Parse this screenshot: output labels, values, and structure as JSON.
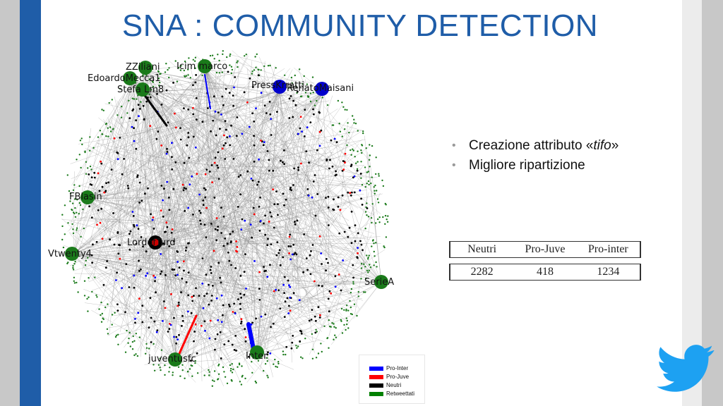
{
  "title": "SNA : COMMUNITY DETECTION",
  "bullets": [
    {
      "text_before": "Creazione attributo «",
      "italic": "tifo",
      "text_after": "»"
    },
    {
      "text_before": "Migliore ripartizione",
      "italic": "",
      "text_after": ""
    }
  ],
  "table": {
    "headers": [
      "Neutri",
      "Pro-Juve",
      "Pro-inter"
    ],
    "values": [
      "2282",
      "418",
      "1234"
    ]
  },
  "graph": {
    "labels": [
      {
        "name": "zziliani-label",
        "text": "ZZiliani"
      },
      {
        "name": "edoardomecca1-label",
        "text": "EdoardoMecca1"
      },
      {
        "name": "stefa-label",
        "text": "Stefa Lm8"
      },
      {
        "name": "icim-marco-label",
        "text": "Icim  marco"
      },
      {
        "name": "presskrrati-label",
        "text": "PressKrratti"
      },
      {
        "name": "renatomaisani-label",
        "text": "RenatoMaisani"
      },
      {
        "name": "fblasin-label",
        "text": "FBlasin"
      },
      {
        "name": "lordofturd-label",
        "text": "LordofTurd"
      },
      {
        "name": "vtwenty4-label",
        "text": "Vtwenty4"
      },
      {
        "name": "seriea-label",
        "text": "SerieA"
      },
      {
        "name": "juventusfc-label",
        "text": "juventusfc"
      },
      {
        "name": "inter-label",
        "text": "Inter"
      }
    ]
  },
  "legend": {
    "items": [
      {
        "label": "Pro-Inter",
        "color": "#0000ff"
      },
      {
        "label": "Pro-Juve",
        "color": "#ff0000"
      },
      {
        "label": "Neutri",
        "color": "#000000"
      },
      {
        "label": "Retweettati",
        "color": "#008000"
      }
    ]
  },
  "colors": {
    "accent": "#1f5da8",
    "pro_inter": "#0000ff",
    "pro_juve": "#ff0000",
    "neutri": "#000000",
    "retweettati": "#1a7a1a",
    "twitter": "#1da1f2"
  },
  "icons": {
    "brand": "twitter-bird-icon"
  }
}
